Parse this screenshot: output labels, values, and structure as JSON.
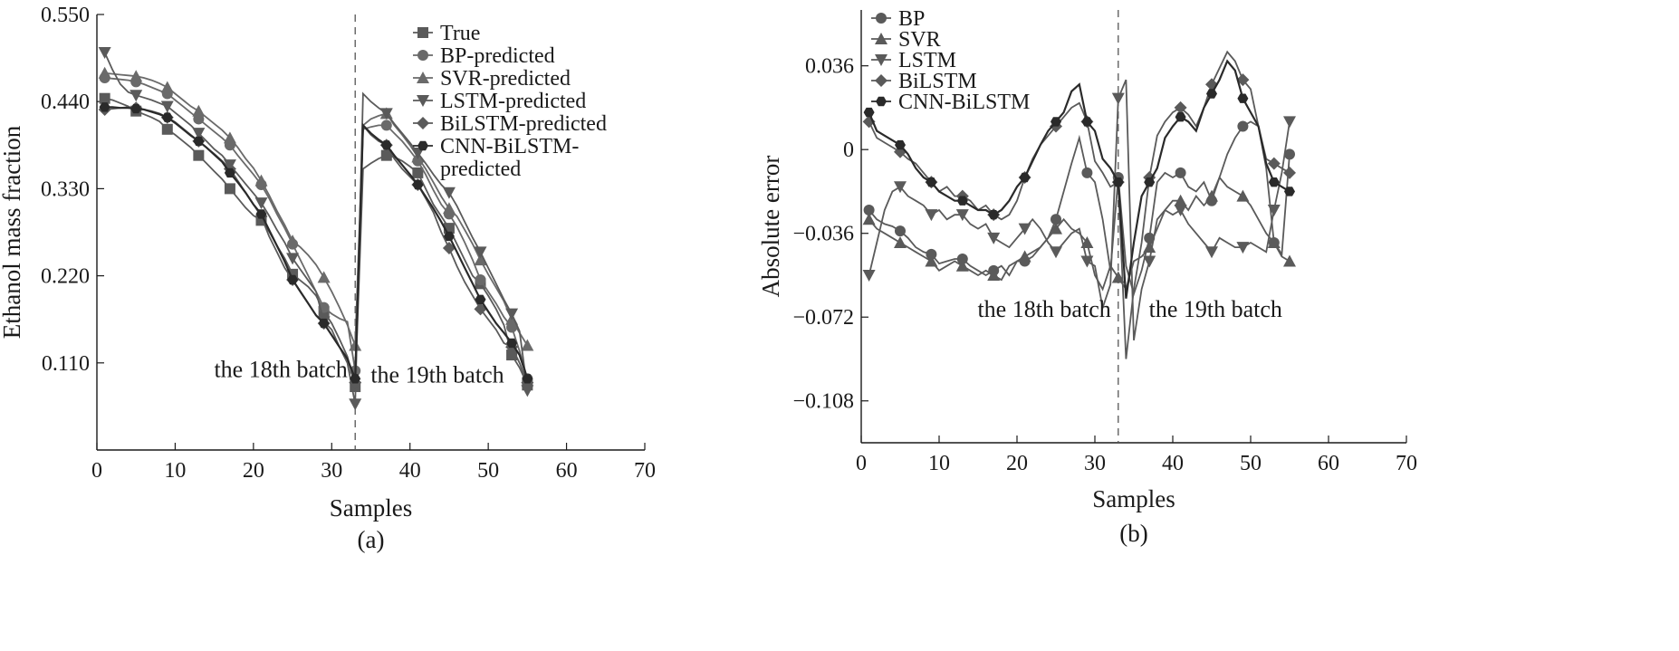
{
  "chart_data": [
    {
      "type": "line",
      "caption": "(a)",
      "xlabel": "Samples",
      "ylabel": "Ethanol mass fraction",
      "xlim": [
        0,
        70
      ],
      "ylim": [
        0.0,
        0.55
      ],
      "xticks": [
        0,
        10,
        20,
        30,
        40,
        50,
        60,
        70
      ],
      "yticks": [
        0.11,
        0.22,
        0.33,
        0.44,
        0.55
      ],
      "ytick_labels": [
        "0.110",
        "0.220",
        "0.330",
        "0.440",
        "0.550"
      ],
      "divider_x": 33,
      "annotations": [
        {
          "text": "the 18th batch",
          "x": 23.5,
          "y": 0.092
        },
        {
          "text": "the 19th batch",
          "x": 43.5,
          "y": 0.085
        }
      ],
      "legend_placement": "top-right",
      "x": [
        1,
        2,
        3,
        4,
        5,
        6,
        7,
        8,
        9,
        10,
        11,
        12,
        13,
        14,
        15,
        16,
        17,
        18,
        19,
        20,
        21,
        22,
        23,
        24,
        25,
        26,
        27,
        28,
        29,
        30,
        31,
        32,
        33,
        34,
        35,
        36,
        37,
        38,
        39,
        40,
        41,
        42,
        43,
        44,
        45,
        46,
        47,
        48,
        49,
        50,
        51,
        52,
        53,
        54,
        55
      ],
      "series": [
        {
          "name": "True",
          "marker": "square",
          "color": "#5a5a5a",
          "values": [
            0.444,
            0.442,
            0.438,
            0.434,
            0.428,
            0.424,
            0.42,
            0.415,
            0.405,
            0.398,
            0.39,
            0.382,
            0.372,
            0.362,
            0.352,
            0.342,
            0.33,
            0.318,
            0.306,
            0.296,
            0.29,
            0.276,
            0.258,
            0.242,
            0.222,
            0.214,
            0.206,
            0.195,
            0.175,
            0.16,
            0.14,
            0.118,
            0.08,
            0.355,
            0.362,
            0.368,
            0.372,
            0.37,
            0.365,
            0.358,
            0.35,
            0.33,
            0.31,
            0.295,
            0.28,
            0.26,
            0.24,
            0.22,
            0.21,
            0.195,
            0.178,
            0.158,
            0.12,
            0.104,
            0.082
          ]
        },
        {
          "name": "BP-predicted",
          "marker": "circle",
          "color": "#6a6a6a",
          "values": [
            0.47,
            0.469,
            0.468,
            0.467,
            0.465,
            0.462,
            0.458,
            0.454,
            0.45,
            0.442,
            0.434,
            0.426,
            0.418,
            0.41,
            0.402,
            0.394,
            0.385,
            0.372,
            0.36,
            0.348,
            0.335,
            0.318,
            0.298,
            0.28,
            0.26,
            0.24,
            0.22,
            0.2,
            0.18,
            0.172,
            0.166,
            0.162,
            0.1,
            0.405,
            0.408,
            0.41,
            0.41,
            0.4,
            0.39,
            0.378,
            0.365,
            0.348,
            0.328,
            0.31,
            0.298,
            0.282,
            0.262,
            0.24,
            0.215,
            0.2,
            0.185,
            0.168,
            0.155,
            0.125,
            0.09
          ]
        },
        {
          "name": "SVR-predicted",
          "marker": "triangle-up",
          "color": "#6a6a6a",
          "values": [
            0.476,
            0.475,
            0.474,
            0.473,
            0.472,
            0.47,
            0.467,
            0.463,
            0.458,
            0.45,
            0.442,
            0.434,
            0.428,
            0.42,
            0.412,
            0.404,
            0.394,
            0.382,
            0.368,
            0.356,
            0.34,
            0.322,
            0.302,
            0.284,
            0.264,
            0.256,
            0.246,
            0.234,
            0.218,
            0.2,
            0.18,
            0.158,
            0.132,
            0.41,
            0.418,
            0.422,
            0.425,
            0.41,
            0.398,
            0.385,
            0.37,
            0.355,
            0.338,
            0.32,
            0.305,
            0.295,
            0.278,
            0.26,
            0.24,
            0.222,
            0.205,
            0.188,
            0.165,
            0.148,
            0.132
          ]
        },
        {
          "name": "LSTM-predicted",
          "marker": "triangle-down",
          "color": "#5a5a5a",
          "values": [
            0.502,
            0.48,
            0.462,
            0.452,
            0.448,
            0.445,
            0.442,
            0.438,
            0.434,
            0.426,
            0.418,
            0.41,
            0.4,
            0.39,
            0.38,
            0.372,
            0.36,
            0.348,
            0.336,
            0.324,
            0.312,
            0.296,
            0.278,
            0.262,
            0.242,
            0.228,
            0.214,
            0.2,
            0.162,
            0.152,
            0.13,
            0.11,
            0.058,
            0.45,
            0.44,
            0.432,
            0.425,
            0.412,
            0.4,
            0.388,
            0.375,
            0.362,
            0.348,
            0.335,
            0.325,
            0.308,
            0.288,
            0.268,
            0.25,
            0.23,
            0.21,
            0.19,
            0.172,
            0.15,
            0.075
          ]
        },
        {
          "name": "BiLSTM-predicted",
          "marker": "diamond",
          "color": "#5a5a5a",
          "values": [
            0.43,
            0.431,
            0.432,
            0.433,
            0.432,
            0.43,
            0.428,
            0.425,
            0.42,
            0.414,
            0.406,
            0.398,
            0.39,
            0.382,
            0.374,
            0.365,
            0.355,
            0.34,
            0.325,
            0.31,
            0.295,
            0.27,
            0.25,
            0.23,
            0.215,
            0.2,
            0.185,
            0.17,
            0.16,
            0.145,
            0.13,
            0.115,
            0.085,
            0.41,
            0.398,
            0.39,
            0.385,
            0.368,
            0.355,
            0.345,
            0.335,
            0.318,
            0.3,
            0.275,
            0.255,
            0.232,
            0.212,
            0.195,
            0.178,
            0.165,
            0.152,
            0.135,
            0.13,
            0.11,
            0.085
          ]
        },
        {
          "name": "CNN-BiLSTM-predicted",
          "marker": "hexagon",
          "color": "#2a2a2a",
          "values": [
            0.433,
            0.433,
            0.432,
            0.432,
            0.431,
            0.43,
            0.427,
            0.424,
            0.42,
            0.413,
            0.405,
            0.397,
            0.39,
            0.382,
            0.373,
            0.364,
            0.35,
            0.338,
            0.325,
            0.31,
            0.298,
            0.278,
            0.258,
            0.238,
            0.215,
            0.2,
            0.185,
            0.17,
            0.16,
            0.145,
            0.13,
            0.115,
            0.09,
            0.41,
            0.4,
            0.392,
            0.385,
            0.372,
            0.36,
            0.348,
            0.335,
            0.32,
            0.305,
            0.288,
            0.27,
            0.25,
            0.23,
            0.21,
            0.19,
            0.175,
            0.16,
            0.148,
            0.135,
            0.12,
            0.09
          ]
        }
      ],
      "legend_labels": [
        "True",
        "BP-predicted",
        "SVR-predicted",
        "LSTM-predicted",
        "BiLSTM-predicted",
        "CNN-BiLSTM-",
        "predicted"
      ]
    },
    {
      "type": "line",
      "caption": "(b)",
      "xlabel": "Samples",
      "ylabel": "Absolute error",
      "xlim": [
        0,
        70
      ],
      "ylim": [
        -0.126,
        0.06
      ],
      "xticks": [
        0,
        10,
        20,
        30,
        40,
        50,
        60,
        70
      ],
      "yticks": [
        -0.108,
        -0.072,
        -0.036,
        0,
        0.036
      ],
      "ytick_labels": [
        "−0.108",
        "−0.072",
        "−0.036",
        "0",
        "0.036"
      ],
      "divider_x": 33,
      "annotations": [
        {
          "text": "the 18th batch",
          "x": 23.5,
          "y": -0.072
        },
        {
          "text": "the 19th batch",
          "x": 45.5,
          "y": -0.072
        }
      ],
      "legend_placement": "top-left",
      "x": [
        1,
        2,
        3,
        4,
        5,
        6,
        7,
        8,
        9,
        10,
        11,
        12,
        13,
        14,
        15,
        16,
        17,
        18,
        19,
        20,
        21,
        22,
        23,
        24,
        25,
        26,
        27,
        28,
        29,
        30,
        31,
        32,
        33,
        34,
        35,
        36,
        37,
        38,
        39,
        40,
        41,
        42,
        43,
        44,
        45,
        46,
        47,
        48,
        49,
        50,
        51,
        52,
        53,
        54,
        55
      ],
      "series": [
        {
          "name": "BP",
          "marker": "circle",
          "color": "#5a5a5a",
          "values": [
            -0.026,
            -0.03,
            -0.032,
            -0.033,
            -0.035,
            -0.038,
            -0.042,
            -0.044,
            -0.045,
            -0.049,
            -0.048,
            -0.047,
            -0.047,
            -0.05,
            -0.052,
            -0.054,
            -0.052,
            -0.05,
            -0.054,
            -0.048,
            -0.048,
            -0.046,
            -0.042,
            -0.038,
            -0.03,
            -0.018,
            -0.006,
            0.005,
            -0.01,
            -0.014,
            -0.03,
            -0.052,
            -0.012,
            -0.05,
            -0.062,
            -0.052,
            -0.038,
            -0.014,
            -0.01,
            -0.012,
            -0.01,
            -0.016,
            -0.018,
            -0.014,
            -0.022,
            -0.012,
            -0.002,
            0.005,
            0.01,
            0.012,
            0.01,
            -0.008,
            -0.04,
            -0.045,
            -0.002
          ]
        },
        {
          "name": "SVR",
          "marker": "triangle-up",
          "color": "#5a5a5a",
          "values": [
            -0.03,
            -0.034,
            -0.036,
            -0.038,
            -0.04,
            -0.042,
            -0.044,
            -0.046,
            -0.048,
            -0.052,
            -0.05,
            -0.048,
            -0.05,
            -0.052,
            -0.054,
            -0.052,
            -0.054,
            -0.056,
            -0.05,
            -0.048,
            -0.046,
            -0.044,
            -0.042,
            -0.038,
            -0.034,
            -0.03,
            -0.034,
            -0.036,
            -0.04,
            -0.054,
            -0.06,
            -0.05,
            -0.055,
            -0.06,
            -0.048,
            -0.046,
            -0.042,
            -0.034,
            -0.026,
            -0.022,
            -0.022,
            -0.026,
            -0.02,
            -0.024,
            -0.02,
            -0.012,
            -0.016,
            -0.018,
            -0.02,
            -0.024,
            -0.03,
            -0.036,
            -0.04,
            -0.046,
            -0.048
          ]
        },
        {
          "name": "LSTM",
          "marker": "triangle-down",
          "color": "#5a5a5a",
          "values": [
            -0.054,
            -0.04,
            -0.026,
            -0.018,
            -0.016,
            -0.02,
            -0.022,
            -0.024,
            -0.028,
            -0.026,
            -0.03,
            -0.028,
            -0.028,
            -0.032,
            -0.034,
            -0.032,
            -0.038,
            -0.04,
            -0.042,
            -0.038,
            -0.034,
            -0.03,
            -0.034,
            -0.04,
            -0.044,
            -0.04,
            -0.036,
            -0.034,
            -0.048,
            -0.05,
            -0.068,
            -0.058,
            0.022,
            0.03,
            -0.082,
            -0.06,
            -0.048,
            -0.03,
            -0.026,
            -0.028,
            -0.026,
            -0.032,
            -0.036,
            -0.04,
            -0.044,
            -0.038,
            -0.04,
            -0.042,
            -0.042,
            -0.04,
            -0.042,
            -0.044,
            -0.026,
            -0.01,
            0.012
          ]
        },
        {
          "name": "BiLSTM",
          "marker": "diamond",
          "color": "#5a5a5a",
          "values": [
            0.012,
            0.005,
            0.003,
            0.001,
            -0.001,
            -0.004,
            -0.006,
            -0.01,
            -0.014,
            -0.018,
            -0.016,
            -0.02,
            -0.02,
            -0.022,
            -0.026,
            -0.024,
            -0.028,
            -0.03,
            -0.028,
            -0.022,
            -0.012,
            -0.004,
            0.002,
            0.006,
            0.01,
            0.014,
            0.018,
            0.02,
            0.012,
            -0.005,
            -0.01,
            -0.016,
            -0.014,
            -0.09,
            -0.06,
            -0.04,
            -0.012,
            0.006,
            0.012,
            0.016,
            0.018,
            0.015,
            0.01,
            0.018,
            0.028,
            0.035,
            0.042,
            0.038,
            0.03,
            0.026,
            0.01,
            -0.004,
            -0.006,
            -0.008,
            -0.01
          ]
        },
        {
          "name": "CNN-BiLSTM",
          "marker": "hexagon",
          "color": "#2a2a2a",
          "values": [
            0.016,
            0.008,
            0.006,
            0.004,
            0.002,
            -0.002,
            -0.008,
            -0.012,
            -0.014,
            -0.018,
            -0.02,
            -0.022,
            -0.022,
            -0.024,
            -0.026,
            -0.026,
            -0.028,
            -0.026,
            -0.022,
            -0.016,
            -0.012,
            -0.005,
            0.002,
            0.008,
            0.012,
            0.016,
            0.025,
            0.028,
            0.012,
            0.008,
            -0.004,
            -0.008,
            -0.014,
            -0.064,
            -0.04,
            -0.02,
            -0.014,
            -0.008,
            0.005,
            0.01,
            0.014,
            0.012,
            0.008,
            0.018,
            0.024,
            0.03,
            0.038,
            0.034,
            0.022,
            0.016,
            0.01,
            -0.006,
            -0.014,
            -0.016,
            -0.018
          ]
        }
      ],
      "legend_labels": [
        "BP",
        "SVR",
        "LSTM",
        "BiLSTM",
        "CNN-BiLSTM"
      ]
    }
  ]
}
